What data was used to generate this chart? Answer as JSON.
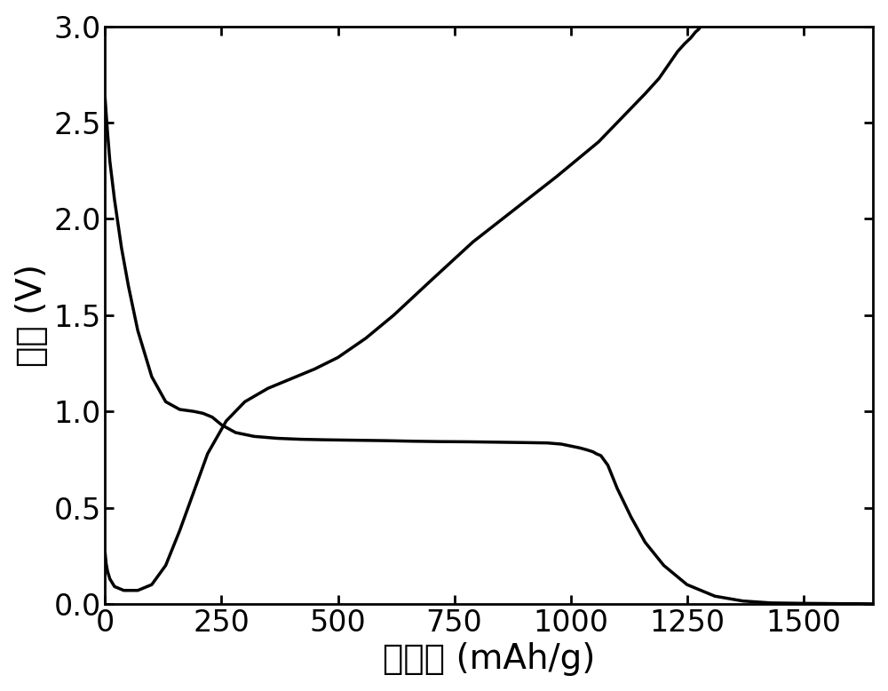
{
  "xlabel": "比容量 (mAh/g)",
  "ylabel": "电压 (V)",
  "xlim": [
    0,
    1650
  ],
  "ylim": [
    0.0,
    3.0
  ],
  "xticks": [
    0,
    250,
    500,
    750,
    1000,
    1250,
    1500
  ],
  "yticks": [
    0.0,
    0.5,
    1.0,
    1.5,
    2.0,
    2.5,
    3.0
  ],
  "line_color": "#000000",
  "line_width": 2.5,
  "background_color": "#ffffff",
  "xlabel_fontsize": 28,
  "ylabel_fontsize": 28,
  "tick_fontsize": 24,
  "discharge_x": [
    0,
    2,
    5,
    10,
    20,
    35,
    50,
    70,
    100,
    130,
    160,
    190,
    210,
    230,
    250,
    280,
    320,
    370,
    420,
    480,
    540,
    600,
    660,
    720,
    780,
    840,
    900,
    950,
    980,
    1000,
    1020,
    1035,
    1048,
    1055,
    1065,
    1080,
    1100,
    1130,
    1160,
    1200,
    1250,
    1310,
    1370,
    1430,
    1490,
    1540,
    1580,
    1610,
    1635,
    1650
  ],
  "discharge_y": [
    2.62,
    2.55,
    2.45,
    2.3,
    2.1,
    1.85,
    1.65,
    1.42,
    1.18,
    1.05,
    1.01,
    1.0,
    0.99,
    0.97,
    0.93,
    0.89,
    0.87,
    0.86,
    0.855,
    0.852,
    0.85,
    0.848,
    0.845,
    0.843,
    0.842,
    0.84,
    0.838,
    0.836,
    0.83,
    0.82,
    0.81,
    0.8,
    0.79,
    0.78,
    0.77,
    0.72,
    0.6,
    0.45,
    0.32,
    0.2,
    0.1,
    0.04,
    0.015,
    0.005,
    0.003,
    0.002,
    0.001,
    0.001,
    0.0005,
    0.0
  ],
  "charge_x": [
    0,
    2,
    5,
    10,
    20,
    40,
    70,
    100,
    130,
    160,
    190,
    220,
    260,
    300,
    350,
    400,
    450,
    500,
    560,
    620,
    700,
    790,
    880,
    970,
    1060,
    1120,
    1160,
    1190,
    1210,
    1230,
    1245,
    1258,
    1268,
    1275,
    1280
  ],
  "charge_y": [
    0.26,
    0.21,
    0.17,
    0.13,
    0.09,
    0.07,
    0.07,
    0.1,
    0.2,
    0.38,
    0.58,
    0.78,
    0.95,
    1.05,
    1.12,
    1.17,
    1.22,
    1.28,
    1.38,
    1.5,
    1.68,
    1.88,
    2.05,
    2.22,
    2.4,
    2.55,
    2.65,
    2.73,
    2.8,
    2.87,
    2.91,
    2.94,
    2.97,
    2.985,
    3.0
  ]
}
